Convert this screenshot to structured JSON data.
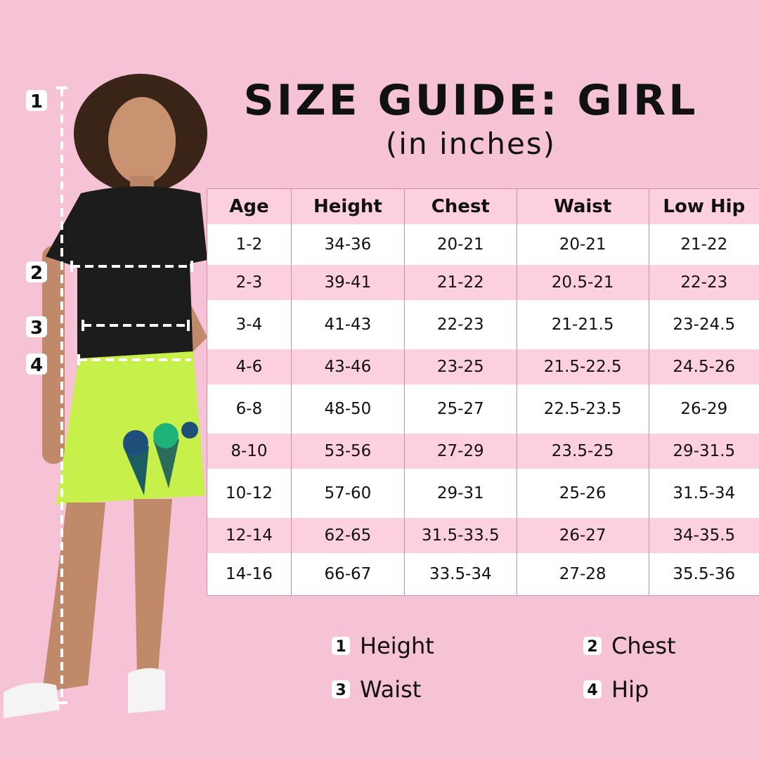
{
  "header": {
    "title": "SIZE GUIDE: GIRL",
    "subtitle": "(in inches)"
  },
  "table": {
    "columns": [
      "Age",
      "Height",
      "Chest",
      "Waist",
      "Low Hip"
    ],
    "rows": [
      [
        "1-2",
        "34-36",
        "20-21",
        "20-21",
        "21-22"
      ],
      [
        "2-3",
        "39-41",
        "21-22",
        "20.5-21",
        "22-23"
      ],
      [
        "3-4",
        "41-43",
        "22-23",
        "21-21.5",
        "23-24.5"
      ],
      [
        "4-6",
        "43-46",
        "23-25",
        "21.5-22.5",
        "24.5-26"
      ],
      [
        "6-8",
        "48-50",
        "25-27",
        "22.5-23.5",
        "26-29"
      ],
      [
        "8-10",
        "53-56",
        "27-29",
        "23.5-25",
        "29-31.5"
      ],
      [
        "10-12",
        "57-60",
        "29-31",
        "25-26",
        "31.5-34"
      ],
      [
        "12-14",
        "62-65",
        "31.5-33.5",
        "26-27",
        "34-35.5"
      ],
      [
        "14-16",
        "66-67",
        "33.5-34",
        "27-28",
        "35.5-36"
      ]
    ]
  },
  "markers": [
    "1",
    "2",
    "3",
    "4"
  ],
  "legend": [
    {
      "num": "1",
      "label": "Height"
    },
    {
      "num": "2",
      "label": "Chest"
    },
    {
      "num": "3",
      "label": "Waist"
    },
    {
      "num": "4",
      "label": "Hip"
    }
  ],
  "colors": {
    "background": "#f6c2d6",
    "row_pink": "#fdd0df",
    "row_white": "#ffffff",
    "shirt": "#1c1c1c",
    "skirt": "#c8f04a"
  }
}
